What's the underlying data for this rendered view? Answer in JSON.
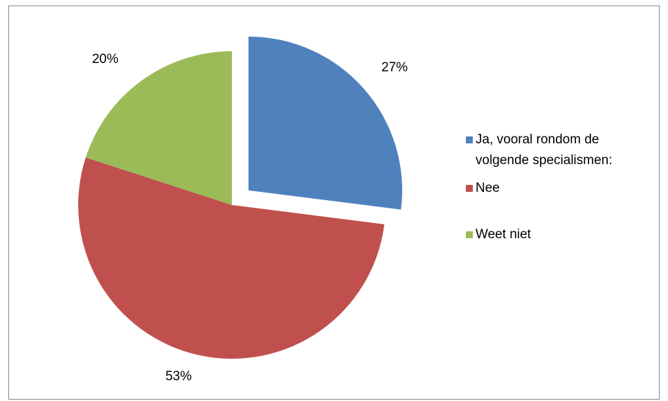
{
  "chart_data": {
    "type": "pie",
    "categories": [
      "Ja, vooral rondom de volgende specialismen:",
      "Nee",
      "Weet niet"
    ],
    "values": [
      27,
      53,
      20
    ],
    "labels": [
      "27%",
      "53%",
      "20%"
    ],
    "colors": [
      "#4F81BD",
      "#C0504D",
      "#9BBB59"
    ],
    "exploded": [
      true,
      false,
      false
    ],
    "legend_position": "right",
    "legend": {
      "items": [
        {
          "label": "Ja, vooral rondom de volgende specialismen:",
          "color": "#4F81BD"
        },
        {
          "label": "Nee",
          "color": "#C0504D"
        },
        {
          "label": "Weet niet",
          "color": "#9BBB59"
        }
      ]
    }
  }
}
